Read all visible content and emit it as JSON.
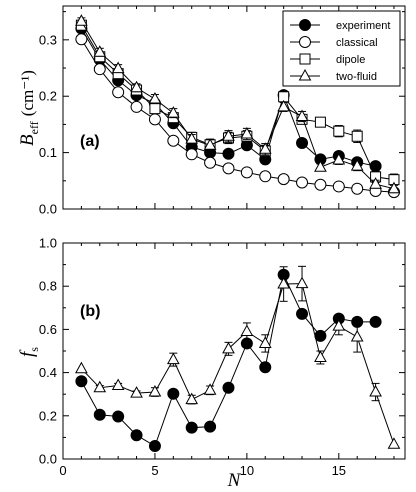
{
  "chart_data": [
    {
      "type": "line",
      "panel_label": "(a)",
      "ylabel_main": "B",
      "ylabel_sub": "eff",
      "ylabel_unit": "(cm⁻¹)",
      "xlabel": "",
      "xlim": [
        0,
        18.6
      ],
      "ylim": [
        0,
        0.36
      ],
      "x_ticks": [
        0,
        5,
        10,
        15
      ],
      "y_ticks": [
        0.0,
        0.1,
        0.2,
        0.3
      ],
      "y_tick_labels": [
        "0.0",
        "0.1",
        "0.2",
        "0.3"
      ],
      "legend": {
        "position": "top-right"
      },
      "series": [
        {
          "name": "experiment",
          "marker": "circle-filled",
          "x": [
            1,
            2,
            3,
            4,
            5,
            6,
            7,
            8,
            9,
            10,
            11,
            12,
            13,
            14,
            15,
            16,
            17
          ],
          "y": [
            0.32,
            0.265,
            0.228,
            0.202,
            0.187,
            0.152,
            0.11,
            0.1,
            0.098,
            0.113,
            0.088,
            0.202,
            0.117,
            0.088,
            0.094,
            0.083,
            0.076
          ],
          "err": [
            0,
            0,
            0,
            0,
            0,
            0,
            0,
            0,
            0,
            0,
            0,
            0,
            0,
            0,
            0,
            0,
            0
          ]
        },
        {
          "name": "classical",
          "marker": "circle-open",
          "x": [
            1,
            2,
            3,
            4,
            5,
            6,
            7,
            8,
            9,
            10,
            11,
            12,
            13,
            14,
            15,
            16,
            17,
            18
          ],
          "y": [
            0.301,
            0.248,
            0.207,
            0.181,
            0.159,
            0.121,
            0.097,
            0.082,
            0.072,
            0.065,
            0.058,
            0.053,
            0.047,
            0.043,
            0.04,
            0.036,
            0.032,
            0.03
          ],
          "err": [
            0,
            0,
            0,
            0,
            0,
            0,
            0,
            0,
            0,
            0,
            0,
            0,
            0,
            0,
            0,
            0,
            0,
            0
          ]
        },
        {
          "name": "dipole",
          "marker": "square-open",
          "x": [
            1,
            2,
            3,
            4,
            5,
            6,
            7,
            8,
            9,
            10,
            11,
            12,
            13,
            14,
            15,
            16,
            17,
            18
          ],
          "y": [
            0.326,
            0.27,
            0.24,
            0.211,
            0.178,
            0.162,
            0.127,
            0.114,
            0.126,
            0.129,
            0.103,
            0.199,
            0.159,
            0.154,
            0.138,
            0.129,
            0.057,
            0.052
          ],
          "err": [
            0.008,
            0.007,
            0.007,
            0.007,
            0.008,
            0.008,
            0.009,
            0.01,
            0.01,
            0.01,
            0.01,
            0.008,
            0.008,
            0.006,
            0.01,
            0.011,
            0.01,
            0.01
          ]
        },
        {
          "name": "two-fluid",
          "marker": "triangle-open",
          "x": [
            1,
            2,
            3,
            4,
            5,
            6,
            7,
            8,
            9,
            10,
            11,
            12,
            13,
            14,
            15,
            16,
            17,
            18
          ],
          "y": [
            0.333,
            0.278,
            0.249,
            0.215,
            0.195,
            0.17,
            0.124,
            0.113,
            0.129,
            0.133,
            0.106,
            0.181,
            0.164,
            0.074,
            0.087,
            0.076,
            0.044,
            0.036
          ],
          "err": [
            0.006,
            0.007,
            0.007,
            0.007,
            0.008,
            0.008,
            0.008,
            0.01,
            0.01,
            0.01,
            0.01,
            0.008,
            0.009,
            0.006,
            0.008,
            0.008,
            0.007,
            0.007
          ]
        }
      ]
    },
    {
      "type": "line",
      "panel_label": "(b)",
      "ylabel_main": "f",
      "ylabel_sub": "s",
      "xlabel": "N",
      "xlim": [
        0,
        18.6
      ],
      "ylim": [
        0,
        1.0
      ],
      "x_ticks": [
        0,
        5,
        10,
        15
      ],
      "y_ticks": [
        0.0,
        0.2,
        0.4,
        0.6,
        0.8,
        1.0
      ],
      "y_tick_labels": [
        "0.0",
        "0.2",
        "0.4",
        "0.6",
        "0.8",
        "1.0"
      ],
      "series": [
        {
          "name": "experiment",
          "marker": "circle-filled",
          "x": [
            1,
            2,
            3,
            4,
            5,
            6,
            7,
            8,
            9,
            10,
            11,
            12,
            13,
            14,
            15,
            16,
            17
          ],
          "y": [
            0.36,
            0.205,
            0.197,
            0.11,
            0.06,
            0.302,
            0.145,
            0.15,
            0.33,
            0.535,
            0.425,
            0.853,
            0.672,
            0.57,
            0.65,
            0.635,
            0.635
          ],
          "err": [
            0,
            0,
            0,
            0,
            0,
            0,
            0,
            0,
            0,
            0,
            0,
            0,
            0,
            0,
            0,
            0,
            0
          ]
        },
        {
          "name": "two-fluid",
          "marker": "triangle-open",
          "x": [
            1,
            2,
            3,
            4,
            5,
            6,
            7,
            8,
            9,
            10,
            11,
            12,
            13,
            14,
            15,
            16,
            17,
            18
          ],
          "y": [
            0.418,
            0.33,
            0.34,
            0.305,
            0.31,
            0.46,
            0.275,
            0.318,
            0.51,
            0.59,
            0.535,
            0.81,
            0.812,
            0.47,
            0.615,
            0.565,
            0.31,
            0.068
          ],
          "err": [
            0,
            0.01,
            0.01,
            0.01,
            0.02,
            0.03,
            0.02,
            0.02,
            0.03,
            0.04,
            0.04,
            0.08,
            0.08,
            0.03,
            0.04,
            0.07,
            0.04,
            0.0
          ]
        }
      ]
    }
  ]
}
